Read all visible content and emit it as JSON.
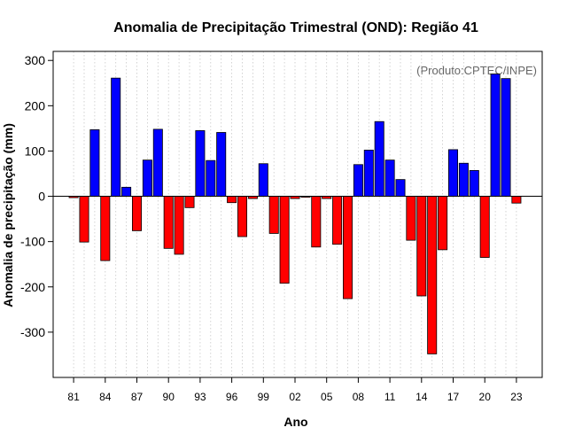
{
  "chart_data": {
    "type": "bar",
    "title": "Anomalia de Precipitação Trimestral (OND): Região 41",
    "xlabel": "Ano",
    "ylabel": "Anomalia de precipitação (mm)",
    "credit": "(Produto:CPTEC/INPE)",
    "ylim": [
      -400,
      320
    ],
    "yticks": [
      300,
      200,
      100,
      0,
      -100,
      -200,
      -300
    ],
    "xtick_labels": [
      "81",
      "84",
      "87",
      "90",
      "93",
      "96",
      "99",
      "02",
      "05",
      "08",
      "11",
      "14",
      "17",
      "20",
      "23"
    ],
    "categories": [
      1981,
      1982,
      1983,
      1984,
      1985,
      1986,
      1987,
      1988,
      1989,
      1990,
      1991,
      1992,
      1993,
      1994,
      1995,
      1996,
      1997,
      1998,
      1999,
      2000,
      2001,
      2002,
      2003,
      2004,
      2005,
      2006,
      2007,
      2008,
      2009,
      2010,
      2011,
      2012,
      2013,
      2014,
      2015,
      2016,
      2017,
      2018,
      2019,
      2020,
      2021,
      2022,
      2023
    ],
    "values": [
      -3,
      -101,
      147,
      -142,
      261,
      20,
      -76,
      80,
      148,
      -115,
      -128,
      -25,
      145,
      79,
      141,
      -14,
      -89,
      -5,
      72,
      -82,
      -192,
      -5,
      -2,
      -112,
      -5,
      -106,
      -226,
      70,
      102,
      165,
      80,
      37,
      -97,
      -220,
      -348,
      -118,
      103,
      73,
      57,
      -135,
      270,
      260,
      -15
    ],
    "positive_color": "#0000ff",
    "negative_color": "#ff0000",
    "grid": "vertical dotted"
  }
}
